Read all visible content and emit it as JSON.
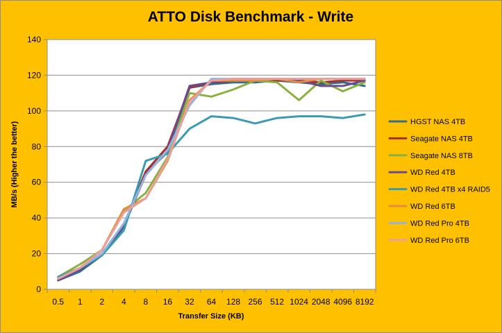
{
  "chart_data": {
    "type": "line",
    "title": "ATTO Disk Benchmark - Write",
    "xlabel": "Transfer Size (KB)",
    "ylabel": "MB/s (Higher the better)",
    "categories": [
      "0.5",
      "1",
      "2",
      "4",
      "8",
      "16",
      "32",
      "64",
      "128",
      "256",
      "512",
      "1024",
      "2048",
      "4096",
      "8192"
    ],
    "ylim": [
      0,
      140
    ],
    "yticks": [
      0,
      20,
      40,
      60,
      80,
      100,
      120,
      140
    ],
    "grid": "horizontal",
    "legend_position": "right",
    "series": [
      {
        "name": "HGST NAS 4TB",
        "color": "#2f6f8f",
        "values": [
          5,
          10,
          19,
          35,
          65,
          77,
          113,
          115,
          116,
          116,
          117,
          116,
          115,
          116,
          114
        ]
      },
      {
        "name": "Seagate NAS 4TB",
        "color": "#a5302c",
        "values": [
          6,
          11,
          20,
          36,
          66,
          80,
          113,
          116,
          117,
          117,
          117,
          117,
          116,
          117,
          117
        ]
      },
      {
        "name": "Seagate NAS 8TB",
        "color": "#8ab040",
        "values": [
          7,
          14,
          22,
          44,
          54,
          74,
          110,
          108,
          112,
          117,
          116,
          106,
          117,
          111,
          116
        ]
      },
      {
        "name": "WD Red 4TB",
        "color": "#6a4b8e",
        "values": [
          5,
          11,
          20,
          36,
          64,
          78,
          114,
          116,
          118,
          118,
          118,
          117,
          114,
          114,
          117
        ]
      },
      {
        "name": "WD Red 4TB x4 RAID5",
        "color": "#3a9bb0",
        "values": [
          7,
          12,
          19,
          33,
          72,
          76,
          90,
          97,
          96,
          93,
          96,
          97,
          97,
          96,
          98
        ]
      },
      {
        "name": "WD Red 6TB",
        "color": "#e88c3c",
        "values": [
          6,
          12,
          22,
          45,
          51,
          72,
          106,
          117,
          117,
          117,
          118,
          116,
          118,
          118,
          118
        ]
      },
      {
        "name": "WD Red Pro 4TB",
        "color": "#94b4e0",
        "values": [
          6,
          12,
          20,
          37,
          64,
          78,
          103,
          118,
          118,
          118,
          118,
          118,
          118,
          118,
          118
        ]
      },
      {
        "name": "WD Red Pro 6TB",
        "color": "#e8a09a",
        "values": [
          6,
          12,
          22,
          43,
          51,
          73,
          105,
          117,
          118,
          118,
          118,
          118,
          118,
          118,
          118
        ]
      }
    ]
  }
}
